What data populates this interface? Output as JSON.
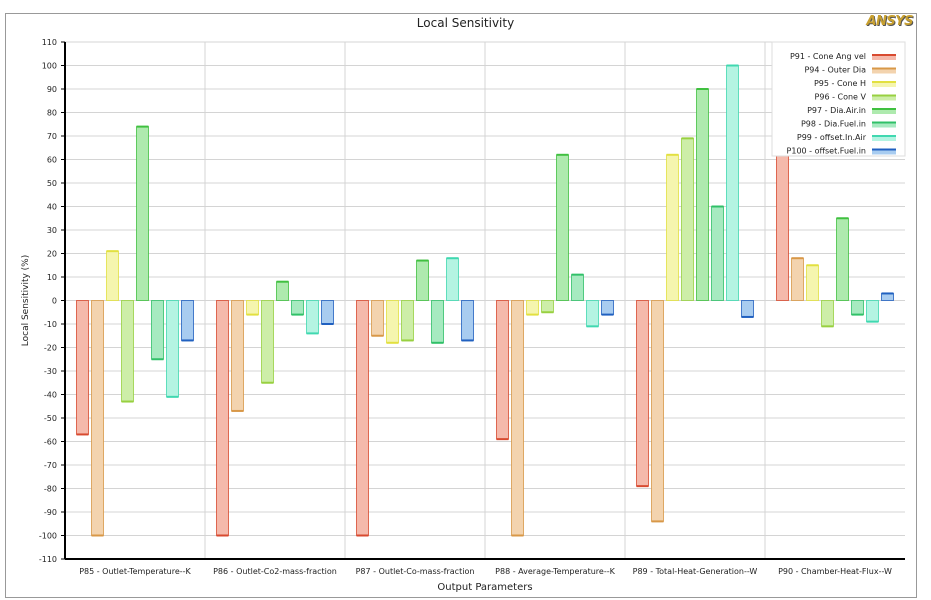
{
  "chart_data": {
    "type": "bar",
    "title": "Local Sensitivity",
    "logo": "ANSYS",
    "xlabel": "Output Parameters",
    "ylabel": "Local Sensitivity (%)",
    "ylim": [
      -110,
      110
    ],
    "yticks": [
      110,
      100,
      90,
      80,
      70,
      60,
      50,
      40,
      30,
      20,
      10,
      0,
      -10,
      -20,
      -30,
      -40,
      -50,
      -60,
      -70,
      -80,
      -90,
      -100,
      -110
    ],
    "grid": true,
    "legend_position": "top-right",
    "categories": [
      "P85 - Outlet-Temperature--K",
      "P86 - Outlet-Co2-mass-fraction",
      "P87 - Outlet-Co-mass-fraction",
      "P88 - Average-Temperature--K",
      "P89 - Total-Heat-Generation--W",
      "P90 - Chamber-Heat-Flux--W"
    ],
    "series": [
      {
        "name": "P91 - Cone Ang vel",
        "line": "#d84a30",
        "fill": "#f5b9ab",
        "values": [
          -57,
          -100,
          -100,
          -59,
          -79,
          100
        ]
      },
      {
        "name": "P94 - Outer Dia",
        "line": "#d89848",
        "fill": "#f3d3ae",
        "values": [
          -100,
          -47,
          -15,
          -100,
          -94,
          18
        ]
      },
      {
        "name": "P95 - Cone H",
        "line": "#e2e040",
        "fill": "#f5f5ae",
        "values": [
          21,
          -6,
          -18,
          -6,
          62,
          15
        ]
      },
      {
        "name": "P96 - Cone V",
        "line": "#98d040",
        "fill": "#cdeea8",
        "values": [
          -43,
          -35,
          -17,
          -5,
          69,
          -11
        ]
      },
      {
        "name": "P97 - Dia.Air.in",
        "line": "#40c040",
        "fill": "#aeeaae",
        "values": [
          74,
          8,
          17,
          62,
          90,
          35
        ]
      },
      {
        "name": "P98 - Dia.Fuel.in",
        "line": "#30c068",
        "fill": "#a6eac0",
        "values": [
          -25,
          -6,
          -18,
          11,
          40,
          -6
        ]
      },
      {
        "name": "P99 - offset.In.Air",
        "line": "#40d8b0",
        "fill": "#b4f4e2",
        "values": [
          -41,
          -14,
          18,
          -11,
          100,
          -9
        ]
      },
      {
        "name": "P100 - offset.Fuel.in",
        "line": "#2060c0",
        "fill": "#a8ccf0",
        "values": [
          -17,
          -10,
          -17,
          -6,
          -7,
          3
        ]
      }
    ]
  }
}
